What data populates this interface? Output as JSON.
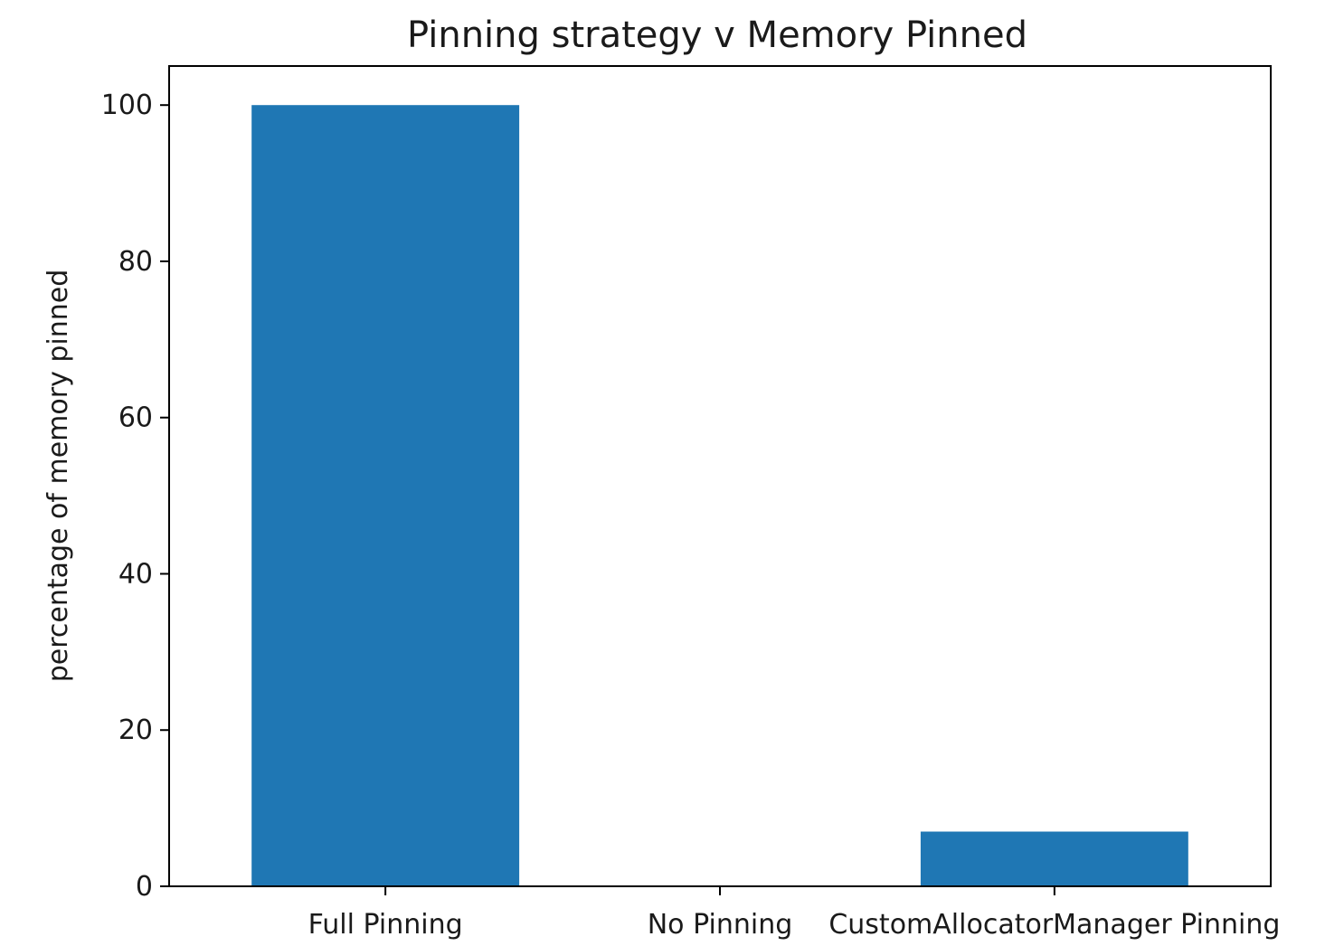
{
  "chart_data": {
    "type": "bar",
    "title": "Pinning strategy v Memory Pinned",
    "xlabel": "",
    "ylabel": "percentage of memory pinned",
    "categories": [
      "Full Pinning",
      "No Pinning",
      "CustomAllocatorManager Pinning"
    ],
    "values": [
      100,
      0,
      7
    ],
    "ylim": [
      0,
      105
    ],
    "yticks": [
      "0",
      "20",
      "40",
      "60",
      "80",
      "100"
    ],
    "grid": false,
    "legend": "none",
    "bar_color": "#1f77b4"
  }
}
